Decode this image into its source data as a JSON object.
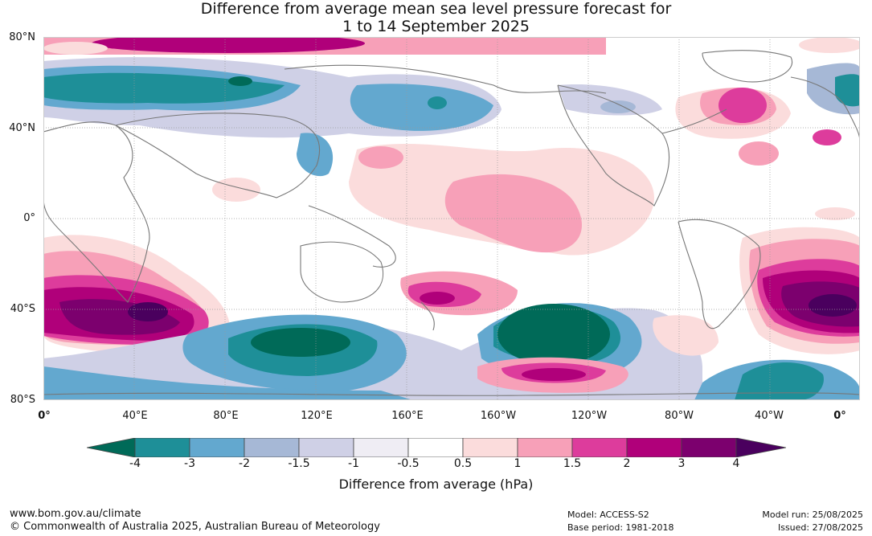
{
  "title_line1": "Difference from average mean sea level pressure forecast for",
  "title_line2": "1 to 14 September 2025",
  "map": {
    "lat_labels": [
      "80°N",
      "40°N",
      "0°",
      "40°S",
      "80°S"
    ],
    "lon_labels": [
      "0°",
      "40°E",
      "80°E",
      "120°E",
      "160°E",
      "160°W",
      "120°W",
      "80°W",
      "40°W",
      "0°"
    ]
  },
  "colorbar": {
    "tick_labels": [
      "-4",
      "-3",
      "-2",
      "-1.5",
      "-1",
      "-0.5",
      "0.5",
      "1",
      "1.5",
      "2",
      "3",
      "4"
    ],
    "colors": [
      "#006a58",
      "#1e8f98",
      "#63a8cf",
      "#a6b8d6",
      "#cfd0e6",
      "#efedf4",
      "#ffffff",
      "#fbdcdc",
      "#f7a0b8",
      "#dd3c9c",
      "#b0007a",
      "#7c006e",
      "#4a005e"
    ],
    "label": "Difference from average (hPa)"
  },
  "footer": {
    "website": "www.bom.gov.au/climate",
    "copyright": "© Commonwealth of Australia 2025, Australian Bureau of Meteorology",
    "model": "Model: ACCESS-S2",
    "base_period": "Base period: 1981-2018",
    "model_run": "Model run: 25/08/2025",
    "issued": "Issued: 27/08/2025"
  }
}
